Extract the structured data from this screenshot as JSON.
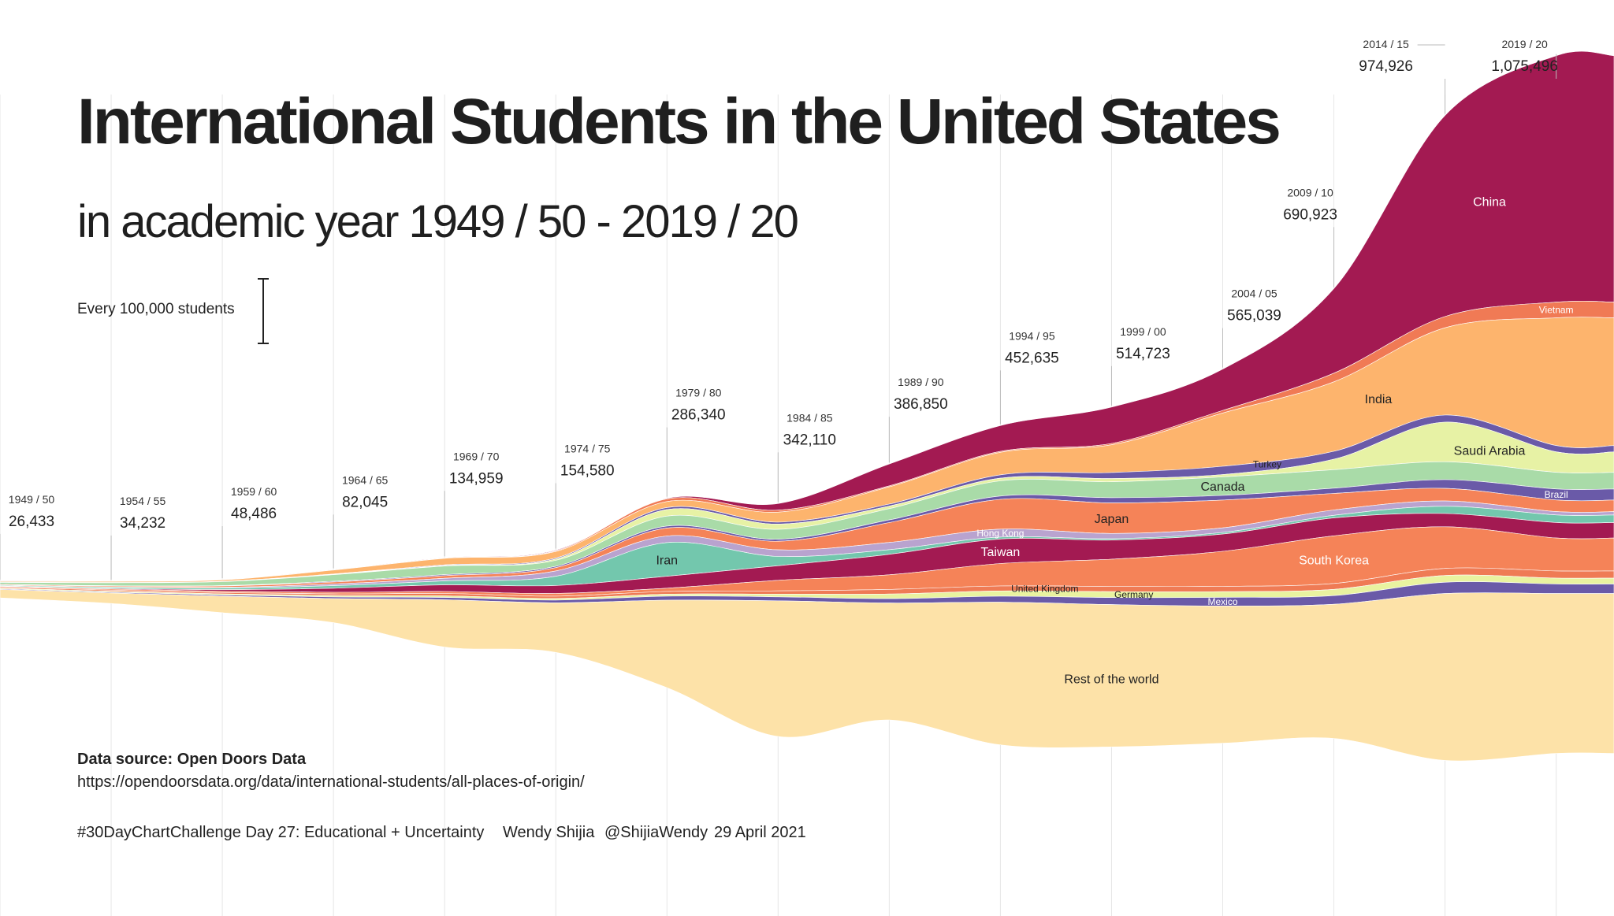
{
  "header": {
    "title": "International Students in the United States",
    "subtitle": "in academic year 1949 / 50 - 2019 / 20"
  },
  "scale": {
    "label": "Every 100,000 students",
    "value": 100000
  },
  "source": {
    "title": "Data source: Open Doors Data",
    "url": "https://opendoorsdata.org/data/international-students/all-places-of-origin/"
  },
  "footer": {
    "challenge": "#30DayChartChallenge Day 27: Educational + Uncertainty",
    "author": "Wendy Shijia",
    "handle": "@ShijiaWendy",
    "date": "29 April 2021"
  },
  "chart_data": {
    "type": "area",
    "subtype": "streamgraph",
    "x": [
      1949,
      1954,
      1959,
      1964,
      1969,
      1974,
      1979,
      1984,
      1989,
      1994,
      1999,
      2004,
      2009,
      2014,
      2019
    ],
    "year_labels": [
      "1949 / 50",
      "1954 / 55",
      "1959 / 60",
      "1964 / 65",
      "1969 / 70",
      "1974 / 75",
      "1979 / 80",
      "1984 / 85",
      "1989 / 90",
      "1994 / 95",
      "1999 / 00",
      "2004 / 05",
      "2009 / 10",
      "2014 / 15",
      "2019 / 20"
    ],
    "totals": [
      26433,
      34232,
      48486,
      82045,
      134959,
      154580,
      286340,
      342110,
      386850,
      452635,
      514723,
      565039,
      690923,
      974926,
      1075496
    ],
    "total_labels": [
      "26,433",
      "34,232",
      "48,486",
      "82,045",
      "134,959",
      "154,580",
      "286,340",
      "342,110",
      "386,850",
      "452,635",
      "514,723",
      "565,039",
      "690,923",
      "974,926",
      "1,075,496"
    ],
    "series": [
      {
        "name": "China",
        "color": "#a31a52",
        "values": [
          300,
          200,
          200,
          300,
          500,
          1000,
          1000,
          10000,
          33000,
          39000,
          55000,
          62500,
          128000,
          304000,
          372500
        ]
      },
      {
        "name": "Vietnam",
        "color": "#f07a55",
        "values": [
          100,
          100,
          100,
          200,
          300,
          1000,
          4000,
          3000,
          1500,
          1500,
          2000,
          4000,
          13000,
          17000,
          23800
        ]
      },
      {
        "name": "India",
        "color": "#fdb46d",
        "values": [
          1300,
          1700,
          2000,
          6000,
          9800,
          10000,
          9000,
          15000,
          26000,
          34000,
          42000,
          80500,
          105000,
          132000,
          193000
        ]
      },
      {
        "name": "Turkey",
        "color": "#6a5aa8",
        "values": [
          100,
          200,
          300,
          600,
          1000,
          1500,
          3000,
          3000,
          3000,
          5000,
          9000,
          12500,
          12000,
          10700,
          9500
        ]
      },
      {
        "name": "Saudi Arabia",
        "color": "#e7f2a5",
        "values": [
          100,
          200,
          300,
          500,
          800,
          2000,
          10000,
          8000,
          4000,
          4000,
          5000,
          3500,
          15800,
          59900,
          30900
        ]
      },
      {
        "name": "Canada",
        "color": "#a9dba8",
        "values": [
          3000,
          4500,
          6000,
          10000,
          13000,
          9000,
          15000,
          15000,
          17000,
          23000,
          24000,
          28000,
          28000,
          27000,
          25100
        ]
      },
      {
        "name": "Brazil",
        "color": "#6a5aa8",
        "values": [
          300,
          400,
          600,
          1000,
          1500,
          2000,
          3000,
          3000,
          4000,
          5000,
          8000,
          7000,
          8000,
          13200,
          16700
        ]
      },
      {
        "name": "Japan",
        "color": "#f58358",
        "values": [
          1000,
          1500,
          2000,
          3000,
          4000,
          5000,
          12000,
          13000,
          30000,
          45000,
          46000,
          42000,
          25000,
          19000,
          17600
        ]
      },
      {
        "name": "Hong Kong",
        "color": "#b9a3cf",
        "values": [
          200,
          400,
          1000,
          2500,
          4000,
          8000,
          10000,
          10000,
          11000,
          12000,
          8000,
          7000,
          8000,
          8000,
          5000
        ]
      },
      {
        "name": "Iran",
        "color": "#73c7ad",
        "values": [
          1000,
          1800,
          2500,
          4000,
          6000,
          14000,
          51000,
          14000,
          7000,
          3000,
          2000,
          2500,
          4000,
          11000,
          11500
        ]
      },
      {
        "name": "Taiwan",
        "color": "#a31a52",
        "values": [
          500,
          1000,
          2500,
          6000,
          10000,
          12000,
          18000,
          22000,
          31000,
          37000,
          29000,
          26000,
          27000,
          20000,
          23400
        ]
      },
      {
        "name": "South Korea",
        "color": "#f58358",
        "values": [
          1000,
          1500,
          2000,
          2500,
          3000,
          4000,
          5000,
          16000,
          22000,
          34000,
          41000,
          53000,
          72000,
          63000,
          49800
        ]
      },
      {
        "name": "United Kingdom",
        "color": "#ef7b55",
        "values": [
          1500,
          1800,
          2000,
          2500,
          3500,
          3500,
          4000,
          5000,
          7000,
          7500,
          8000,
          8000,
          8900,
          10700,
          10800
        ]
      },
      {
        "name": "Germany",
        "color": "#e9f3a0",
        "values": [
          1200,
          1300,
          1500,
          2000,
          2500,
          2500,
          3000,
          4000,
          7000,
          8000,
          9000,
          8600,
          9500,
          10200,
          9000
        ]
      },
      {
        "name": "Mexico",
        "color": "#6a5aa8",
        "values": [
          1000,
          1200,
          1800,
          2500,
          3500,
          4000,
          6000,
          6000,
          6600,
          9000,
          10600,
          13000,
          13000,
          17000,
          14300
        ]
      },
      {
        "name": "Rest of the world",
        "color": "#fde2a8",
        "values": [
          12733,
          15832,
          24986,
          36445,
          71359,
          75080,
          132340,
          205110,
          176750,
          215635,
          215123,
          207439,
          202723,
          252226,
          241696
        ]
      }
    ]
  }
}
